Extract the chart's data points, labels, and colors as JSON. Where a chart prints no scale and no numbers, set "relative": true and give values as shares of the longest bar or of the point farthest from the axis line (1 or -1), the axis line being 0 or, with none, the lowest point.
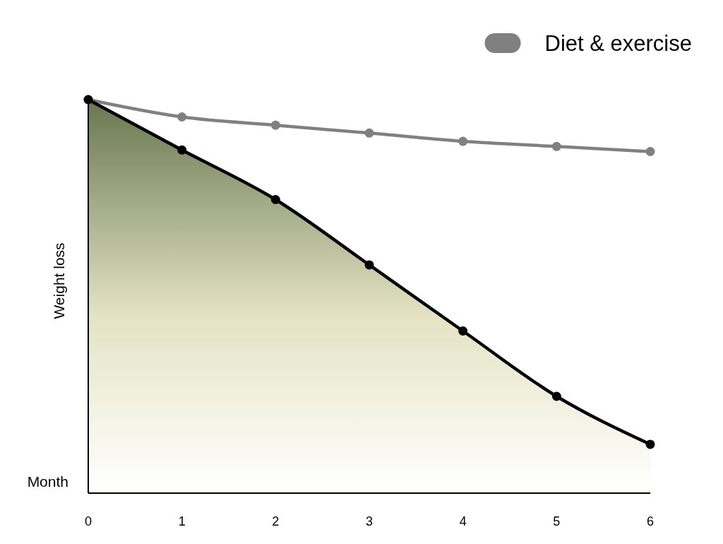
{
  "chart_data": {
    "type": "line",
    "xlabel": "Month",
    "ylabel": "Weight loss",
    "x": [
      0,
      1,
      2,
      3,
      4,
      5,
      6
    ],
    "xlim": [
      0,
      6
    ],
    "xticks": [
      0,
      1,
      2,
      3,
      4,
      5,
      6
    ],
    "relative": true,
    "marker": "circle",
    "legend": "top right",
    "series": [
      {
        "type": "area",
        "color": "#000000",
        "values": [
          1,
          0.872,
          0.746,
          0.58,
          0.412,
          0.246,
          0.124
        ]
      },
      {
        "name": "Diet & exercise",
        "color": "#808080",
        "values": [
          1,
          0.956,
          0.935,
          0.915,
          0.894,
          0.881,
          0.868
        ]
      }
    ]
  }
}
